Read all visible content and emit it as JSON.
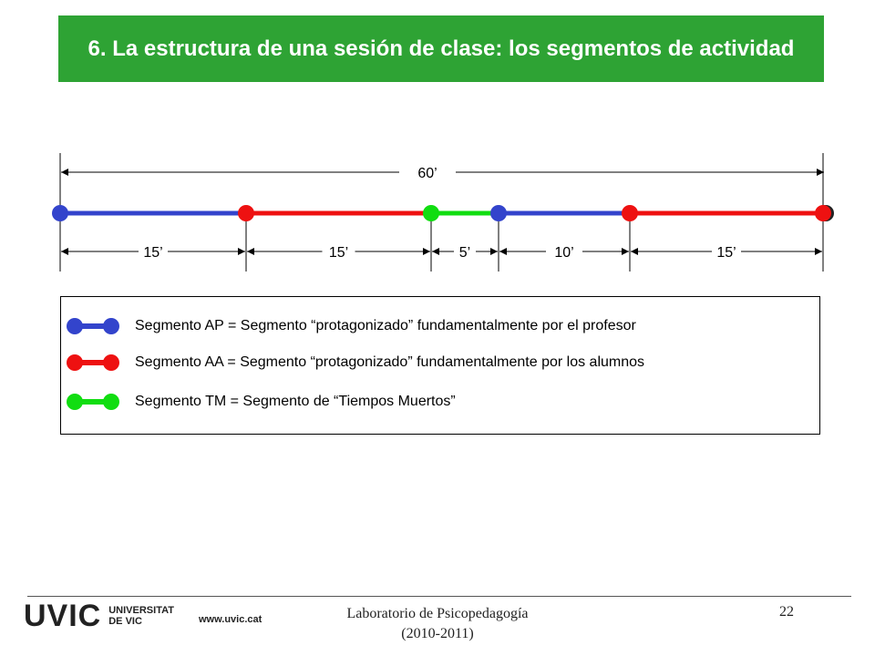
{
  "title": "6. La estructura de una sesión de clase: los segmentos de actividad",
  "timeline": {
    "total_label": "60’",
    "segments": [
      {
        "type": "AP",
        "color": "#3344cc",
        "label": "15’"
      },
      {
        "type": "AA",
        "color": "#ee1111",
        "label": "15’"
      },
      {
        "type": "TM",
        "color": "#11dd11",
        "label": "5’"
      },
      {
        "type": "AP",
        "color": "#3344cc",
        "label": "10’"
      },
      {
        "type": "AA",
        "color": "#ee1111",
        "label": "15’"
      }
    ]
  },
  "legend": [
    {
      "type": "AP",
      "color": "#3344cc",
      "text": "Segmento AP = Segmento “protagonizado” fundamentalmente por el profesor"
    },
    {
      "type": "AA",
      "color": "#ee1111",
      "text": "Segmento AA = Segmento “protagonizado” fundamentalmente por los alumnos"
    },
    {
      "type": "TM",
      "color": "#11dd11",
      "text": "Segmento TM = Segmento de “Tiempos Muertos”"
    }
  ],
  "footer": {
    "logo_mark": "UVIC",
    "logo_line1": "UNIVERSITAT",
    "logo_line2": "DE VIC",
    "website": "www.uvic.cat",
    "center_line1": "Laboratorio de Psicopedagogía",
    "center_line2": "(2010-2011)",
    "page_number": "22"
  }
}
